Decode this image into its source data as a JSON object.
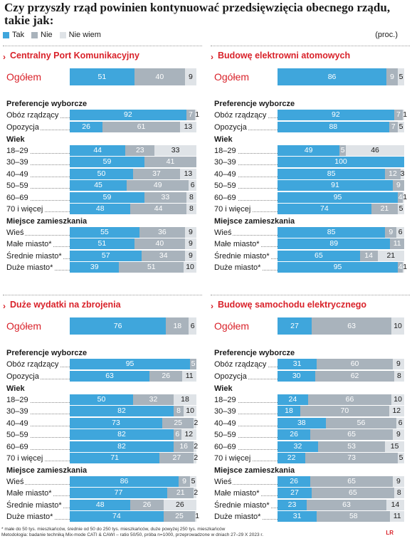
{
  "title": "Czy przyszły rząd powinien kontynuować przedsięwzięcia obecnego rządu, takie jak:",
  "legend": [
    {
      "label": "Tak",
      "color": "#3fa6dc"
    },
    {
      "label": "Nie",
      "color": "#a9b3bc"
    },
    {
      "label": "Nie wiem",
      "color": "#dfe3e7"
    }
  ],
  "unit": "(proc.)",
  "sections": {
    "preferences": "Preferencje wyborcze",
    "age": "Wiek",
    "place": "Miejsce zamieszkania"
  },
  "row_labels": {
    "overall": "Ogółem",
    "pref": [
      "Obóz rządzący",
      "Opozycja"
    ],
    "age": [
      "18–29",
      "30–39",
      "40–49",
      "50–59",
      "60–69",
      "70 i więcej"
    ],
    "place": [
      "Wieś",
      "Małe miasto*",
      "Średnie miasto*",
      "Duże miasto*"
    ]
  },
  "footnote_1": "* małe do 50 tys. mieszkańców, średnie od 50 do 250 tys. mieszkańców, duże powyżej 250 tys. mieszkańców",
  "footnote_2": "Metodologia: badanie techniką Mix-mode CATI & CAWI – ratio 50/50, próba n=1000, przeprowadzone w dniach 27–29 X 2023 r.",
  "logo": "LR",
  "chart_data": [
    {
      "type": "bar",
      "title": "Centralny Port Komunikacyjny",
      "categories": [
        "Ogółem",
        "Obóz rządzący",
        "Opozycja",
        "18–29",
        "30–39",
        "40–49",
        "50–59",
        "60–69",
        "70 i więcej",
        "Wieś",
        "Małe miasto*",
        "Średnie miasto*",
        "Duże miasto*"
      ],
      "series": [
        {
          "name": "Tak",
          "values": [
            51,
            92,
            26,
            44,
            59,
            50,
            45,
            59,
            48,
            55,
            51,
            57,
            39
          ]
        },
        {
          "name": "Nie",
          "values": [
            40,
            7,
            61,
            23,
            41,
            37,
            49,
            33,
            44,
            36,
            40,
            34,
            51
          ]
        },
        {
          "name": "Nie wiem",
          "values": [
            9,
            1,
            13,
            33,
            0,
            13,
            6,
            8,
            8,
            9,
            9,
            9,
            10
          ]
        }
      ]
    },
    {
      "type": "bar",
      "title": "Budowę elektrowni atomowych",
      "categories": [
        "Ogółem",
        "Obóz rządzący",
        "Opozycja",
        "18–29",
        "30–39",
        "40–49",
        "50–59",
        "60–69",
        "70 i więcej",
        "Wieś",
        "Małe miasto*",
        "Średnie miasto*",
        "Duże miasto*"
      ],
      "series": [
        {
          "name": "Tak",
          "values": [
            86,
            92,
            88,
            49,
            100,
            85,
            91,
            95,
            74,
            85,
            89,
            65,
            95
          ]
        },
        {
          "name": "Nie",
          "values": [
            9,
            7,
            7,
            5,
            0,
            12,
            9,
            4,
            21,
            9,
            11,
            14,
            4
          ]
        },
        {
          "name": "Nie wiem",
          "values": [
            5,
            1,
            5,
            46,
            0,
            3,
            0,
            1,
            5,
            6,
            0,
            21,
            1
          ]
        }
      ]
    },
    {
      "type": "bar",
      "title": "Duże wydatki na zbrojenia",
      "categories": [
        "Ogółem",
        "Obóz rządzący",
        "Opozycja",
        "18–29",
        "30–39",
        "40–49",
        "50–59",
        "60–69",
        "70 i więcej",
        "Wieś",
        "Małe miasto*",
        "Średnie miasto*",
        "Duże miasto*"
      ],
      "series": [
        {
          "name": "Tak",
          "values": [
            76,
            95,
            63,
            50,
            82,
            73,
            82,
            82,
            71,
            86,
            77,
            48,
            74
          ]
        },
        {
          "name": "Nie",
          "values": [
            18,
            5,
            26,
            32,
            8,
            25,
            6,
            16,
            27,
            9,
            21,
            26,
            25
          ]
        },
        {
          "name": "Nie wiem",
          "values": [
            6,
            0,
            11,
            18,
            10,
            2,
            12,
            2,
            2,
            5,
            2,
            26,
            1
          ]
        }
      ]
    },
    {
      "type": "bar",
      "title": "Budowę samochodu elektrycznego",
      "categories": [
        "Ogółem",
        "Obóz rządzący",
        "Opozycja",
        "18–29",
        "30–39",
        "40–49",
        "50–59",
        "60–69",
        "70 i więcej",
        "Wieś",
        "Małe miasto*",
        "Średnie miasto*",
        "Duże miasto*"
      ],
      "series": [
        {
          "name": "Tak",
          "values": [
            27,
            31,
            30,
            24,
            18,
            38,
            26,
            32,
            22,
            26,
            27,
            23,
            31
          ]
        },
        {
          "name": "Nie",
          "values": [
            63,
            60,
            62,
            66,
            70,
            56,
            65,
            53,
            73,
            65,
            65,
            63,
            58
          ]
        },
        {
          "name": "Nie wiem",
          "values": [
            10,
            9,
            8,
            10,
            12,
            6,
            9,
            15,
            5,
            9,
            8,
            14,
            11
          ]
        }
      ]
    }
  ]
}
